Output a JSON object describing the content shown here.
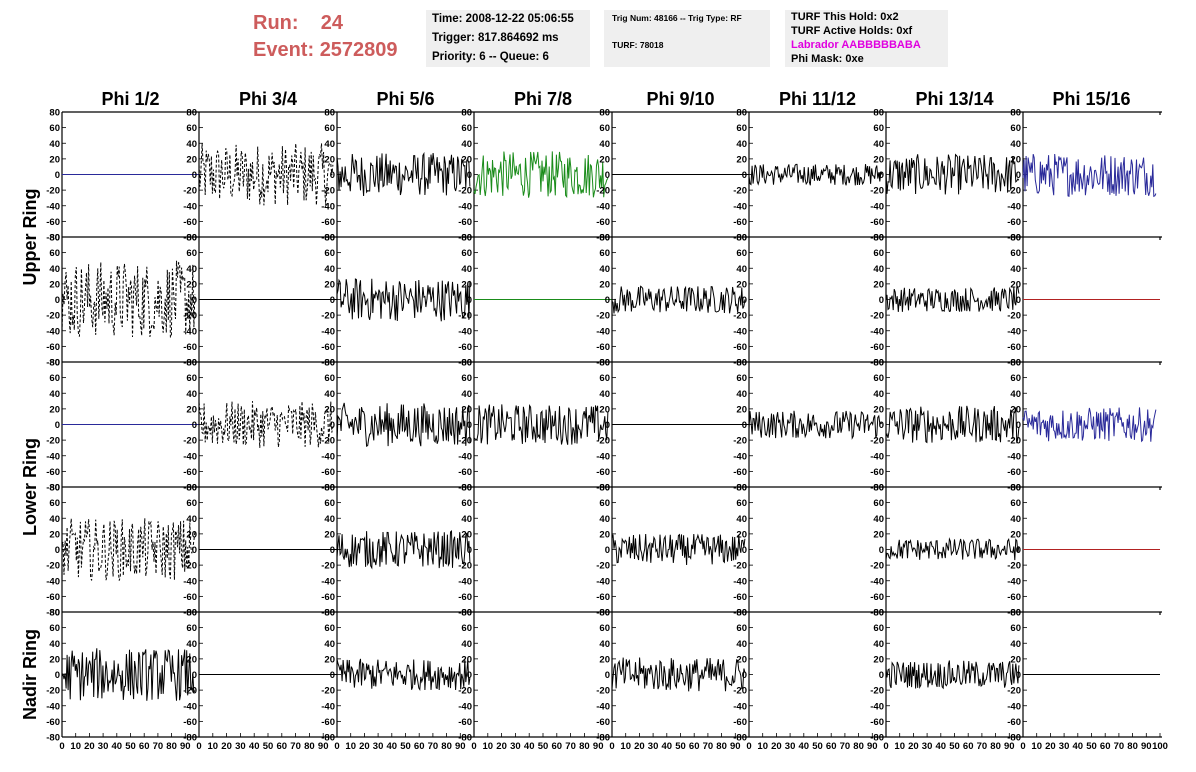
{
  "header": {
    "run_label": "Run:",
    "run_value": "24",
    "event_label": "Event:",
    "event_value": "2572809",
    "time_line": "Time: 2008-12-22 05:06:55",
    "trigger_line": "Trigger: 817.864692 ms",
    "priority_line": "Priority: 6 -- Queue: 6",
    "trig_line": "Trig Num: 48166 -- Trig Type: RF",
    "turf_line": "TURF: 78018",
    "turf_hold": "TURF This Hold: 0x2",
    "turf_active": "TURF Active Holds: 0xf",
    "labrador": "Labrador AABBBBBABA",
    "phi_mask": "Phi Mask: 0xe"
  },
  "colors": {
    "run_text": "#cd5c5c",
    "info_bg": "#efefef",
    "labrador_text": "#e000e0",
    "trace_black": "#000000",
    "trace_blue": "#2a2a9a",
    "trace_green": "#1a8c1a",
    "trace_red": "#b22222"
  },
  "chart_data": {
    "type": "line",
    "column_titles": [
      "Phi 1/2",
      "Phi 3/4",
      "Phi 5/6",
      "Phi 7/8",
      "Phi 9/10",
      "Phi 11/12",
      "Phi 13/14",
      "Phi 15/16"
    ],
    "row_titles": [
      "Upper Ring",
      "Lower Ring",
      "Nadir Ring"
    ],
    "ylim": [
      -80,
      80
    ],
    "xlim": [
      0,
      100
    ],
    "y_ticks": [
      "-80",
      "-60",
      "-40",
      "-20",
      "0",
      "20",
      "40",
      "60",
      "80"
    ],
    "x_ticks": [
      "0",
      "10",
      "20",
      "30",
      "40",
      "50",
      "60",
      "70",
      "80",
      "90",
      "100"
    ],
    "panels": [
      [
        {
          "color": "blue",
          "style": "flat",
          "amp": 0
        },
        {
          "color": "black",
          "style": "dashed",
          "amp": 40
        },
        {
          "color": "black",
          "style": "solid",
          "amp": 28
        },
        {
          "color": "green",
          "style": "solid",
          "amp": 30
        },
        {
          "color": "black",
          "style": "flat",
          "amp": 0
        },
        {
          "color": "black",
          "style": "solid",
          "amp": 14
        },
        {
          "color": "black",
          "style": "solid",
          "amp": 26
        },
        {
          "color": "blue",
          "style": "solid",
          "amp": 28
        }
      ],
      [
        {
          "color": "black",
          "style": "dashed",
          "amp": 50
        },
        {
          "color": "black",
          "style": "flat",
          "amp": 0
        },
        {
          "color": "black",
          "style": "solid",
          "amp": 28
        },
        {
          "color": "green",
          "style": "flat",
          "amp": 0
        },
        {
          "color": "black",
          "style": "solid",
          "amp": 18
        },
        {
          "color": "black",
          "style": "none",
          "amp": 0
        },
        {
          "color": "black",
          "style": "solid",
          "amp": 16
        },
        {
          "color": "red",
          "style": "flat",
          "amp": 0
        }
      ],
      [
        {
          "color": "blue",
          "style": "flat",
          "amp": 0
        },
        {
          "color": "black",
          "style": "dashed",
          "amp": 30
        },
        {
          "color": "black",
          "style": "solid",
          "amp": 28
        },
        {
          "color": "black",
          "style": "solid",
          "amp": 26
        },
        {
          "color": "black",
          "style": "flat",
          "amp": 0
        },
        {
          "color": "black",
          "style": "solid",
          "amp": 18
        },
        {
          "color": "black",
          "style": "solid",
          "amp": 24
        },
        {
          "color": "blue",
          "style": "solid",
          "amp": 22
        }
      ],
      [
        {
          "color": "black",
          "style": "dashed",
          "amp": 40
        },
        {
          "color": "black",
          "style": "flat",
          "amp": 0
        },
        {
          "color": "black",
          "style": "solid",
          "amp": 24
        },
        {
          "color": "black",
          "style": "none",
          "amp": 0
        },
        {
          "color": "black",
          "style": "solid",
          "amp": 20
        },
        {
          "color": "black",
          "style": "none",
          "amp": 0
        },
        {
          "color": "black",
          "style": "solid",
          "amp": 14
        },
        {
          "color": "red",
          "style": "flat",
          "amp": 0
        }
      ],
      [
        {
          "color": "black",
          "style": "solid",
          "amp": 34
        },
        {
          "color": "black",
          "style": "flat",
          "amp": 0
        },
        {
          "color": "black",
          "style": "solid",
          "amp": 20
        },
        {
          "color": "black",
          "style": "none",
          "amp": 0
        },
        {
          "color": "black",
          "style": "solid",
          "amp": 22
        },
        {
          "color": "black",
          "style": "none",
          "amp": 0
        },
        {
          "color": "black",
          "style": "solid",
          "amp": 18
        },
        {
          "color": "black",
          "style": "flat",
          "amp": 0
        }
      ]
    ]
  }
}
